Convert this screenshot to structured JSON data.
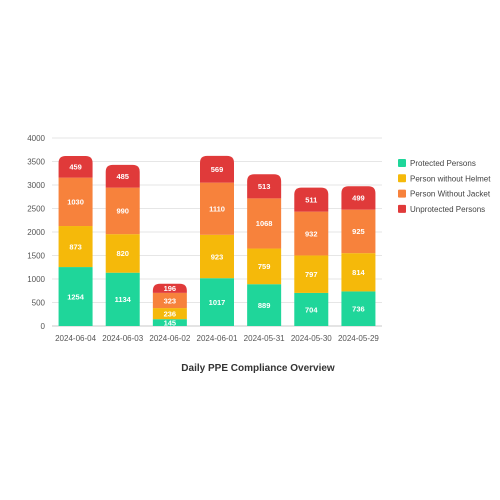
{
  "chart_data": {
    "type": "bar",
    "stacked": true,
    "title": "Daily PPE Compliance Overview",
    "xlabel": "",
    "ylabel": "",
    "ylim": [
      0,
      4000
    ],
    "yticks": [
      0,
      500,
      1000,
      1500,
      2000,
      2500,
      3000,
      3500,
      4000
    ],
    "grid": true,
    "legend_position": "right",
    "categories": [
      "2024-06-04",
      "2024-06-03",
      "2024-06-02",
      "2024-06-01",
      "2024-05-31",
      "2024-05-30",
      "2024-05-29"
    ],
    "series": [
      {
        "name": "Protected Persons",
        "color": "#1fd69a",
        "values": [
          1254,
          1134,
          145,
          1017,
          889,
          704,
          736
        ]
      },
      {
        "name": "Person without Helmet",
        "color": "#f5b90a",
        "values": [
          873,
          820,
          236,
          923,
          759,
          797,
          814
        ]
      },
      {
        "name": "Person Without Jacket",
        "color": "#f7823c",
        "values": [
          1030,
          990,
          323,
          1110,
          1068,
          932,
          925
        ]
      },
      {
        "name": "Unprotected Persons",
        "color": "#e03a3a",
        "values": [
          459,
          485,
          196,
          569,
          513,
          511,
          499
        ]
      }
    ]
  }
}
